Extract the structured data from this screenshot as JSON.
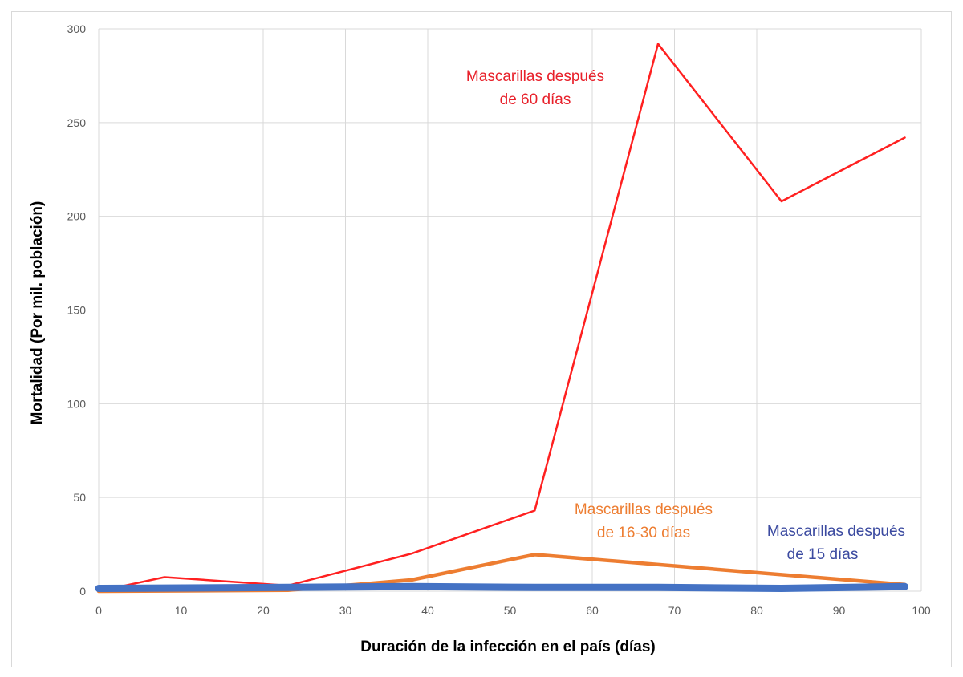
{
  "chart_data": {
    "type": "line",
    "xlabel": "Duración de la infección en el país (días)",
    "ylabel": "Mortalidad (Por mil. población)",
    "xlim": [
      0,
      100
    ],
    "ylim": [
      0,
      300
    ],
    "x_ticks": [
      "0",
      "10",
      "20",
      "30",
      "40",
      "50",
      "60",
      "70",
      "80",
      "90",
      "100"
    ],
    "y_ticks": [
      "0",
      "50",
      "100",
      "150",
      "200",
      "250",
      "300"
    ],
    "grid": true,
    "series": [
      {
        "name": "Mascarillas después de 60 días",
        "color": "#ff2020",
        "points": [
          [
            0,
            0
          ],
          [
            8,
            7.5
          ],
          [
            23,
            3
          ],
          [
            38,
            20
          ],
          [
            53,
            43
          ],
          [
            68,
            292
          ],
          [
            83,
            208
          ],
          [
            98,
            242
          ]
        ]
      },
      {
        "name": "Mascarillas después de 16-30 días",
        "color": "#ed7d31",
        "points": [
          [
            0,
            0
          ],
          [
            23,
            0.5
          ],
          [
            38,
            6
          ],
          [
            53,
            19.5
          ],
          [
            98,
            3.5
          ]
        ]
      },
      {
        "name": "Mascarillas después de 15 días",
        "color": "#4472c4",
        "points": [
          [
            0,
            1.5
          ],
          [
            23,
            2
          ],
          [
            38,
            2.5
          ],
          [
            53,
            2
          ],
          [
            68,
            2
          ],
          [
            83,
            1.5
          ],
          [
            98,
            2.5
          ]
        ]
      }
    ],
    "annotations": [
      {
        "lines": [
          "Mascarillas después",
          "de 60 días"
        ],
        "color": "#e8202a"
      },
      {
        "lines": [
          "Mascarillas después",
          "de 16-30 días"
        ],
        "color": "#ed7d31"
      },
      {
        "lines": [
          "Mascarillas después",
          "de 15 días"
        ],
        "color": "#3b4aa0"
      }
    ]
  }
}
